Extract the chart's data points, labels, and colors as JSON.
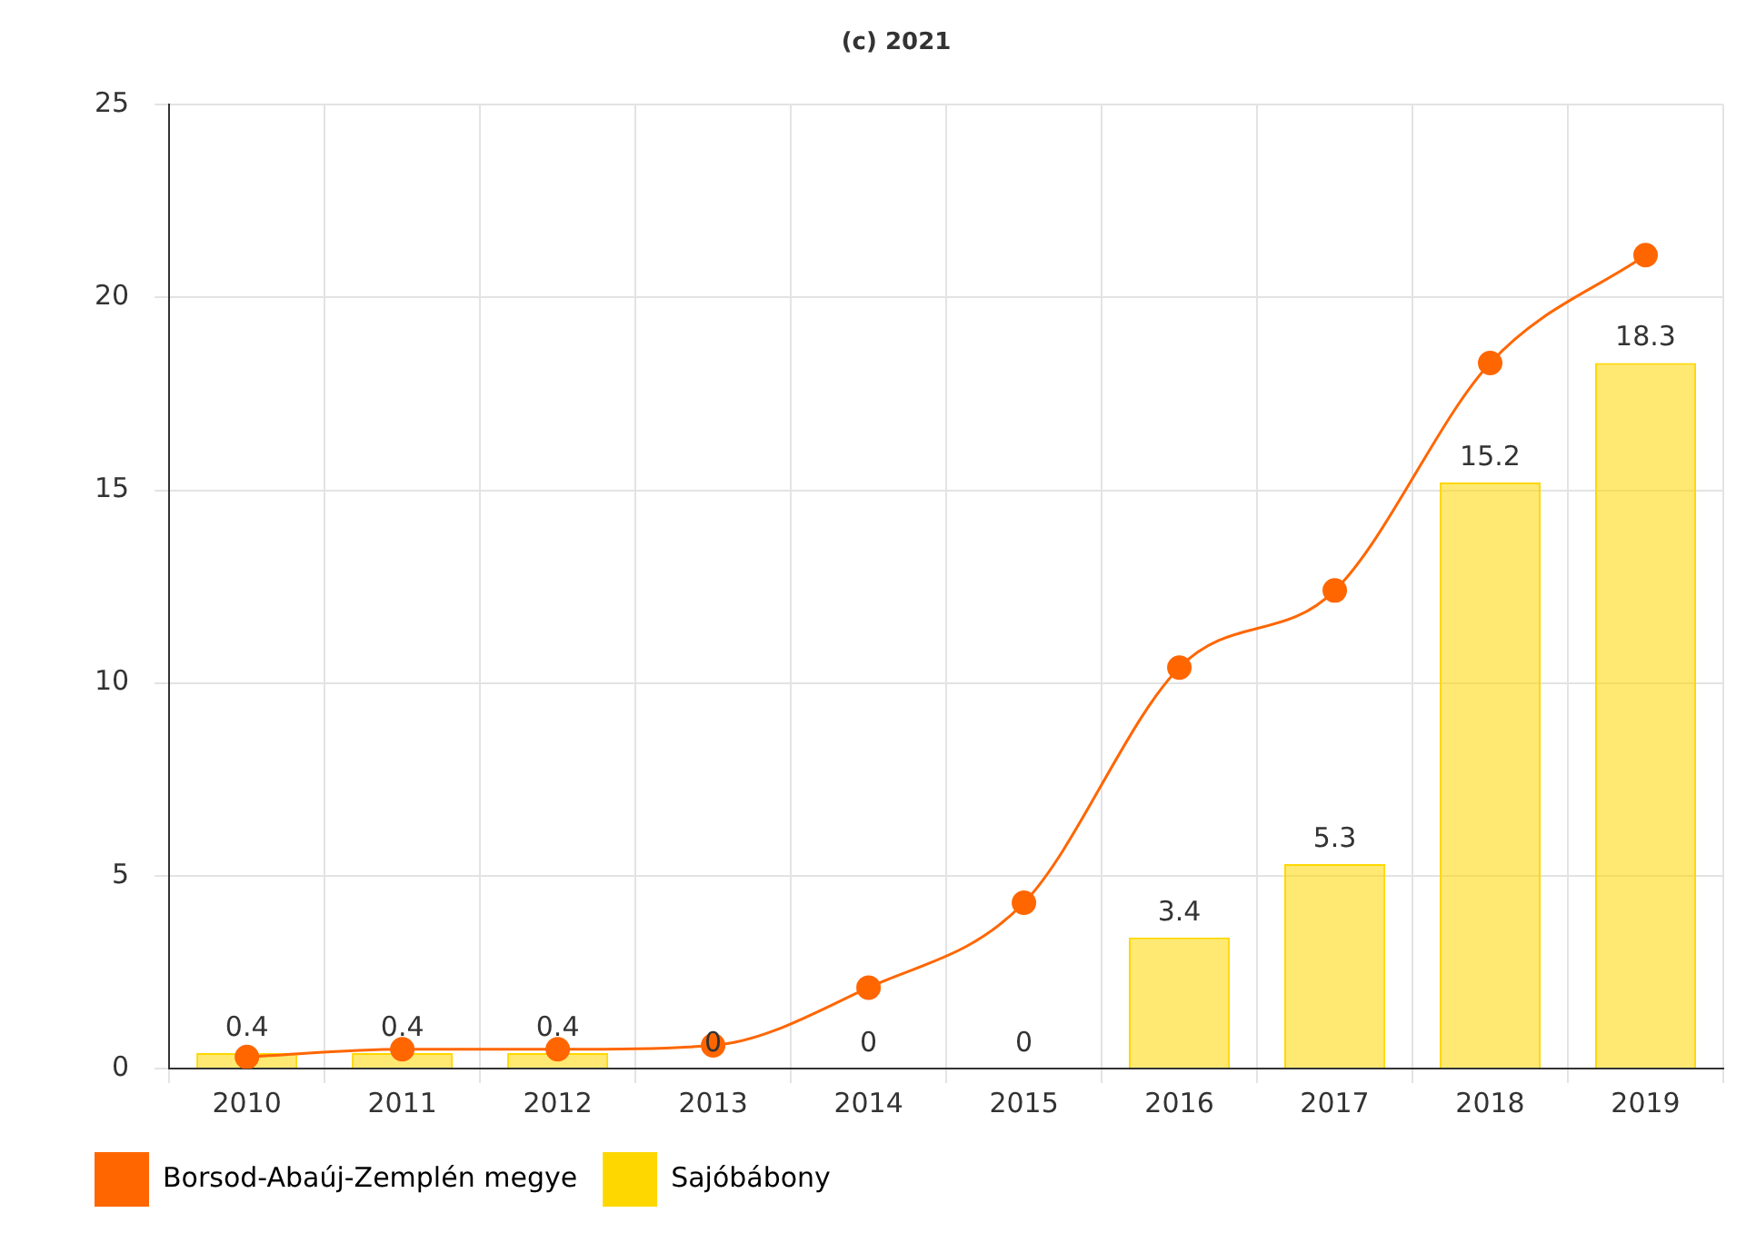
{
  "chart_data": {
    "type": "bar",
    "title": "(c) 2021",
    "categories": [
      "2010",
      "2011",
      "2012",
      "2013",
      "2014",
      "2015",
      "2016",
      "2017",
      "2018",
      "2019"
    ],
    "series": [
      {
        "name": "Borsod-Abaúj-Zemplén megye",
        "type": "line",
        "color": "#ff6600",
        "values": [
          0.3,
          0.5,
          0.5,
          0.6,
          2.1,
          4.3,
          10.4,
          12.4,
          18.3,
          21.1
        ]
      },
      {
        "name": "Sajóbábony",
        "color": "#ffd700",
        "values": [
          0.4,
          0.4,
          0.4,
          0,
          0,
          0,
          3.4,
          5.3,
          15.2,
          18.3
        ],
        "value_labels": [
          "0.4",
          "0.4",
          "0.4",
          "0",
          "0",
          "0",
          "3.4",
          "5.3",
          "15.2",
          "18.3"
        ]
      }
    ],
    "ylim": [
      0,
      25
    ],
    "yticks": [
      0,
      5,
      10,
      15,
      20,
      25
    ],
    "grid": true,
    "legend": "bottom left",
    "marker": "circle",
    "line_style": "solid"
  }
}
